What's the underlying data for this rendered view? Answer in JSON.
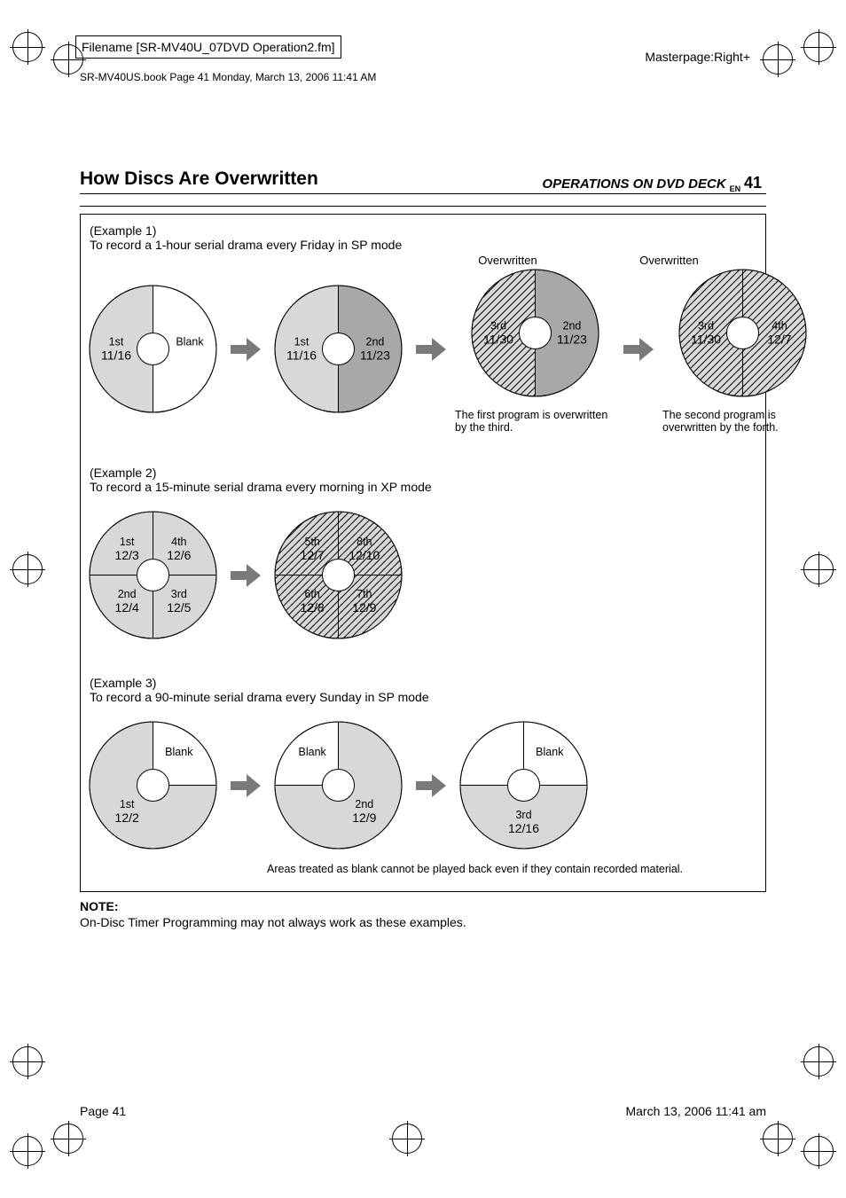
{
  "meta": {
    "filename": "Filename [SR-MV40U_07DVD Operation2.fm]",
    "bookline": "SR-MV40US.book  Page 41  Monday, March 13, 2006  11:41 AM",
    "masterpage": "Masterpage:Right+",
    "section": "OPERATIONS ON DVD DECK",
    "lang": "EN",
    "pagenum": "41",
    "footer_left": "Page 41",
    "footer_right": "March 13, 2006 11:41 am"
  },
  "heading": "How Discs Are Overwritten",
  "colors": {
    "outline": "#000000",
    "blank": "#ffffff",
    "rec_gray": "#d8d8d8",
    "medium_gray": "#a8a8a8",
    "hatch_stroke": "#000000",
    "arrow_fill": "#7a7a7a",
    "label": "#000000"
  },
  "ex1": {
    "label": "(Example 1)",
    "desc": "To record a 1-hour serial drama every Friday in SP mode",
    "over1": "Overwritten",
    "over2": "Overwritten",
    "disc1": {
      "segments": [
        {
          "start": 0,
          "end": 180,
          "fill": "blank",
          "label1": "Blank",
          "label2": ""
        },
        {
          "start": 180,
          "end": 360,
          "fill": "rec_gray",
          "label1": "1st",
          "label2": "11/16"
        }
      ]
    },
    "disc2": {
      "segments": [
        {
          "start": 0,
          "end": 180,
          "fill": "medium_gray",
          "label1": "2nd",
          "label2": "11/23"
        },
        {
          "start": 180,
          "end": 360,
          "fill": "rec_gray",
          "label1": "1st",
          "label2": "11/16"
        }
      ]
    },
    "disc3": {
      "segments": [
        {
          "start": 0,
          "end": 180,
          "fill": "medium_gray",
          "label1": "2nd",
          "label2": "11/23"
        },
        {
          "start": 180,
          "end": 360,
          "fill": "hatch",
          "label1": "3rd",
          "label2": "11/30"
        }
      ]
    },
    "disc4": {
      "segments": [
        {
          "start": 0,
          "end": 180,
          "fill": "hatch",
          "label1": "4th",
          "label2": "12/7"
        },
        {
          "start": 180,
          "end": 360,
          "fill": "hatch",
          "label1": "3rd",
          "label2": "11/30"
        }
      ]
    },
    "cap3": "The first program is overwritten by the third.",
    "cap4": "The second program is overwritten by the forth."
  },
  "ex2": {
    "label": "(Example 2)",
    "desc": "To record a 15-minute serial drama every morning in XP mode",
    "disc1": {
      "segments": [
        {
          "start": 0,
          "end": 90,
          "fill": "rec_gray",
          "label1": "4th",
          "label2": "12/6"
        },
        {
          "start": 90,
          "end": 180,
          "fill": "rec_gray",
          "label1": "3rd",
          "label2": "12/5"
        },
        {
          "start": 180,
          "end": 270,
          "fill": "rec_gray",
          "label1": "2nd",
          "label2": "12/4"
        },
        {
          "start": 270,
          "end": 360,
          "fill": "rec_gray",
          "label1": "1st",
          "label2": "12/3"
        }
      ]
    },
    "disc2": {
      "segments": [
        {
          "start": 0,
          "end": 90,
          "fill": "hatch",
          "label1": "8th",
          "label2": "12/10"
        },
        {
          "start": 90,
          "end": 180,
          "fill": "hatch",
          "label1": "7th",
          "label2": "12/9"
        },
        {
          "start": 180,
          "end": 270,
          "fill": "hatch",
          "label1": "6th",
          "label2": "12/8"
        },
        {
          "start": 270,
          "end": 360,
          "fill": "hatch",
          "label1": "5th",
          "label2": "12/7"
        }
      ]
    }
  },
  "ex3": {
    "label": "(Example 3)",
    "desc": "To record a 90-minute serial drama every Sunday in SP mode",
    "disc1": {
      "segments": [
        {
          "start": 0,
          "end": 90,
          "fill": "blank",
          "label1": "Blank",
          "label2": ""
        },
        {
          "start": 90,
          "end": 360,
          "fill": "rec_gray",
          "label1": "1st",
          "label2": "12/2"
        }
      ]
    },
    "disc2": {
      "segments": [
        {
          "start": 0,
          "end": 270,
          "fill": "rec_gray",
          "label1": "2nd",
          "label2": "12/9"
        },
        {
          "start": 270,
          "end": 360,
          "fill": "blank",
          "label1": "Blank",
          "label2": ""
        }
      ]
    },
    "disc3": {
      "segments": [
        {
          "start": 0,
          "end": 90,
          "fill": "blank",
          "label1": "Blank",
          "label2": ""
        },
        {
          "start": 90,
          "end": 270,
          "fill": "rec_gray",
          "label1": "3rd",
          "label2": "12/16"
        },
        {
          "start": 270,
          "end": 360,
          "fill": "blank",
          "label1": "",
          "label2": ""
        }
      ]
    },
    "cap": "Areas treated as blank cannot be played back even if they contain recorded material."
  },
  "note": {
    "hd": "NOTE:",
    "text": "On-Disc Timer Programming may not always work as these examples."
  }
}
